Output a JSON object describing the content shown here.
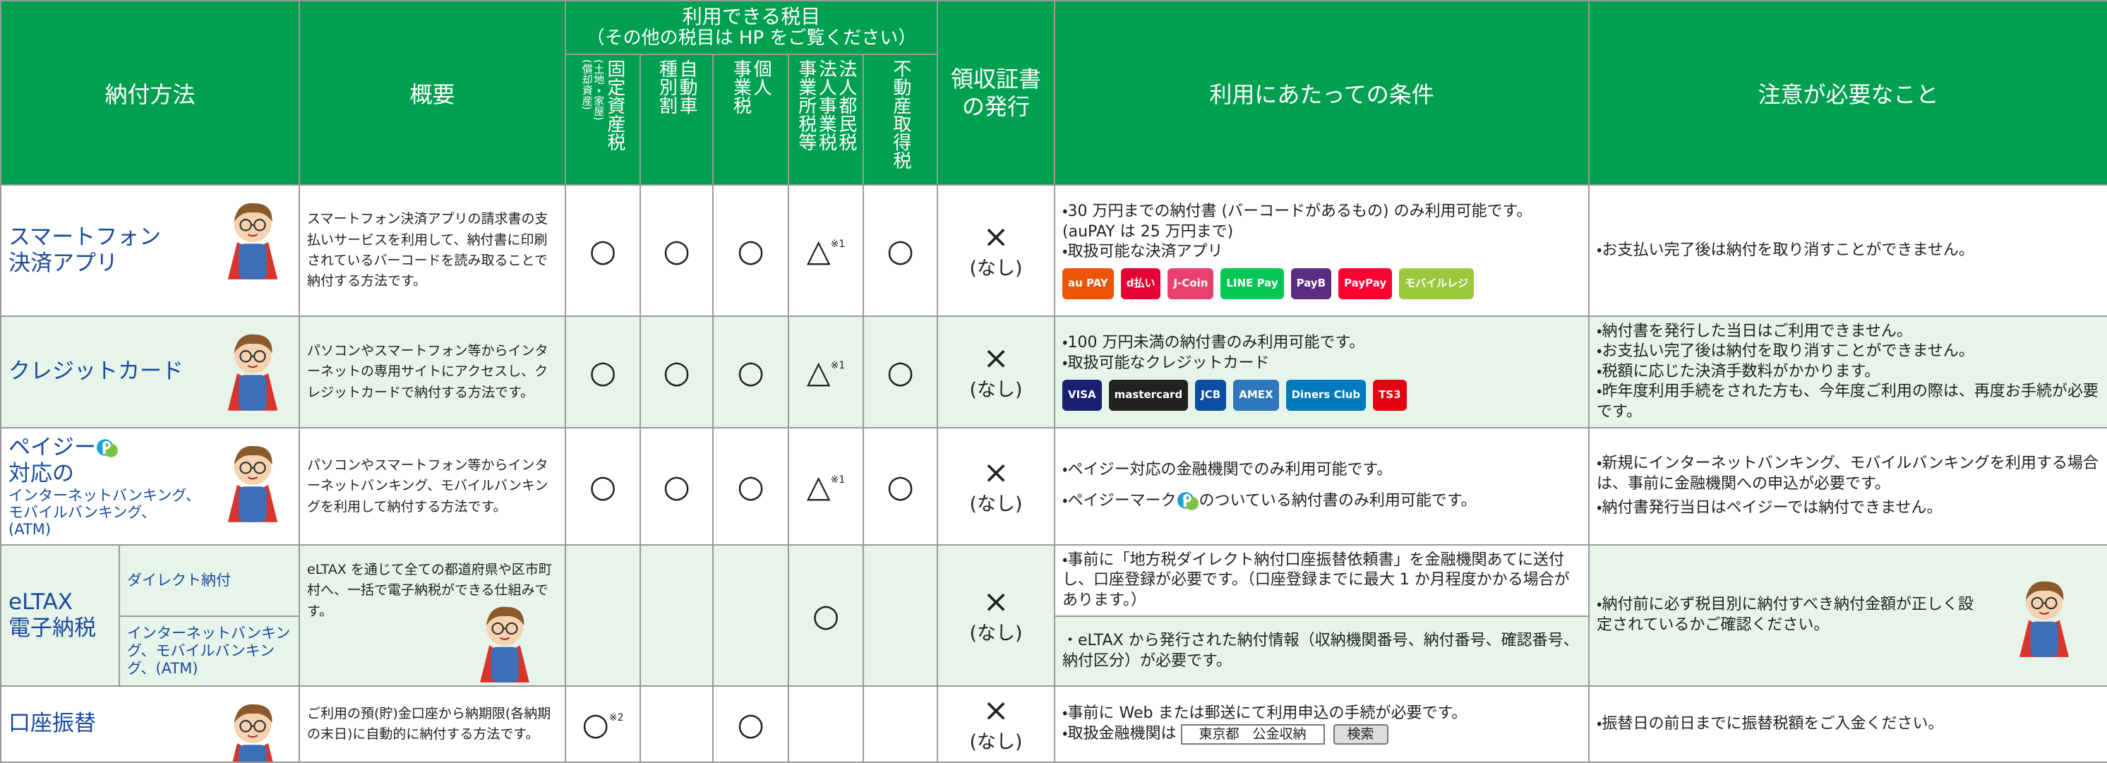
{
  "header": {
    "method": "納付方法",
    "overview": "概要",
    "taxes_title": "利用できる税目",
    "taxes_note": "（その他の税目は HP をご覧ください）",
    "taxes": [
      {
        "lines": [
          "固定資産税"
        ],
        "sub": [
          "(土地・家屋)",
          "(償却資産)"
        ]
      },
      {
        "lines": [
          "自動車",
          "種別割"
        ]
      },
      {
        "lines": [
          "個人",
          "事業税"
        ]
      },
      {
        "lines": [
          "法人都民税",
          "法人事業税",
          "事業所税等"
        ]
      },
      {
        "lines": [
          "不動産取得税"
        ]
      }
    ],
    "receipt": [
      "領収証書",
      "の発行"
    ],
    "conditions": "利用にあたっての条件",
    "notes": "注意が必要なこと"
  },
  "rows": [
    {
      "method": {
        "lines": [
          "スマートフォン",
          "決済アプリ"
        ]
      },
      "overview": "スマートフォン決済アプリの請求書の支払いサービスを利用して、納付書に印刷されているバーコードを読み取ることで納付する方法です。",
      "marks": [
        "○",
        "○",
        "○",
        "△",
        "○"
      ],
      "mark_notes": [
        null,
        null,
        null,
        "※1",
        null
      ],
      "receipt": [
        "×",
        "(なし)"
      ],
      "conditions": [
        {
          "lines": [
            "・30 万円までの納付書 (バーコードがあるもの) のみ利用可能です。",
            "(auPAY は 25 万円まで)",
            "・取扱可能な決済アプリ"
          ],
          "logos": [
            {
              "label": "au PAY",
              "color": "#eb5505"
            },
            {
              "label": "d払い",
              "color": "#e60033"
            },
            {
              "label": "J-Coin",
              "color": "#e8416e"
            },
            {
              "label": "LINE Pay",
              "color": "#06c755"
            },
            {
              "label": "PayB",
              "color": "#5a2d82"
            },
            {
              "label": "PayPay",
              "color": "#ff0033"
            },
            {
              "label": "モバイルレジ",
              "color": "#9bc93e"
            }
          ]
        }
      ],
      "notes": [
        "・お支払い完了後は納付を取り消すことができません。"
      ]
    },
    {
      "method": {
        "lines": [
          "クレジットカード"
        ]
      },
      "overview": "パソコンやスマートフォン等からインターネットの専用サイトにアクセスし、クレジットカードで納付する方法です。",
      "marks": [
        "○",
        "○",
        "○",
        "△",
        "○"
      ],
      "mark_notes": [
        null,
        null,
        null,
        "※1",
        null
      ],
      "receipt": [
        "×",
        "(なし)"
      ],
      "conditions": [
        {
          "lines": [
            "・100 万円未満の納付書のみ利用可能です。",
            "・取扱可能なクレジットカード"
          ],
          "logos": [
            {
              "label": "VISA",
              "color": "#1a1f71"
            },
            {
              "label": "mastercard",
              "color": "#222222"
            },
            {
              "label": "JCB",
              "color": "#0b4ea2"
            },
            {
              "label": "AMEX",
              "color": "#2e77bc"
            },
            {
              "label": "Diners Club",
              "color": "#0079be"
            },
            {
              "label": "TS3",
              "color": "#e60012"
            }
          ]
        }
      ],
      "notes": [
        "・納付書を発行した当日はご利用できません。",
        "・お支払い完了後は納付を取り消すことができません。",
        "・税額に応じた決済手数料がかかります。",
        "・昨年度利用手続をされた方も、今年度ご利用の際は、再度お手続が必要です。"
      ]
    },
    {
      "method": {
        "lines": [
          "ペイジー",
          "対応の"
        ],
        "note": [
          "インターネットバンキング、",
          "モバイルバンキング、",
          "(ATM)"
        ]
      },
      "overview": "パソコンやスマートフォン等からインターネットバンキング、モバイルバンキングを利用して納付する方法です。",
      "marks": [
        "○",
        "○",
        "○",
        "△",
        "○"
      ],
      "mark_notes": [
        null,
        null,
        null,
        "※1",
        null
      ],
      "receipt": [
        "×",
        "(なし)"
      ],
      "conditions": [
        {
          "lines": [
            "・ペイジー対応の金融機関でのみ利用可能です。"
          ],
          "icon_line": [
            "・ペイジーマーク",
            "のついている納付書のみ利用可能です。"
          ]
        }
      ],
      "notes": [
        "・新規にインターネットバンキング、モバイルバンキングを利用する場合は、事前に金融機関への申込が必要です。",
        "・納付書発行当日はペイジーでは納付できません。"
      ]
    },
    {
      "method": {
        "lines": [
          "eLTAX",
          "電子納税"
        ]
      },
      "sub_methods": [
        "ダイレクト納付",
        "インターネットバンキング、モバイルバンキング、(ATM)"
      ],
      "overview": "eLTAX を通じて全ての都道府県や区市町村へ、一括で電子納税ができる仕組みです。",
      "marks": [
        null,
        null,
        null,
        "○",
        null
      ],
      "mark_notes": [
        null,
        null,
        null,
        null,
        null
      ],
      "receipt": [
        "×",
        "(なし)"
      ],
      "conditions": [
        {
          "lines": [
            "・事前に「地方税ダイレクト納付口座振替依頼書」を金融機関あてに送付し、口座登録が必要です。（口座登録までに最大 1 か月程度かかる場合があります。）"
          ]
        },
        {
          "lines": [
            "・eLTAX から発行された納付情報（収納機関番号、納付番号、確認番号、納付区分）が必要です。"
          ]
        }
      ],
      "notes": [
        "・納付前に必ず税目別に納付すべき納付金額が正しく設定されているかご確認ください。"
      ]
    },
    {
      "method": {
        "lines": [
          "口座振替"
        ]
      },
      "overview": "ご利用の預(貯)金口座から納期限(各納期の末日)に自動的に納付する方法です。",
      "marks": [
        "○",
        null,
        "○",
        null,
        null
      ],
      "mark_notes": [
        "※2",
        null,
        null,
        null,
        null
      ],
      "receipt": [
        "×",
        "(なし)"
      ],
      "conditions": [
        {
          "lines": [
            "・事前に Web または郵送にて利用申込の手続が必要です。"
          ],
          "search": {
            "label": "・取扱金融機関は",
            "input": "東京都　公金収納",
            "button": "検索"
          }
        }
      ],
      "notes": [
        "・振替日の前日までに振替税額をご入金ください。"
      ]
    }
  ]
}
